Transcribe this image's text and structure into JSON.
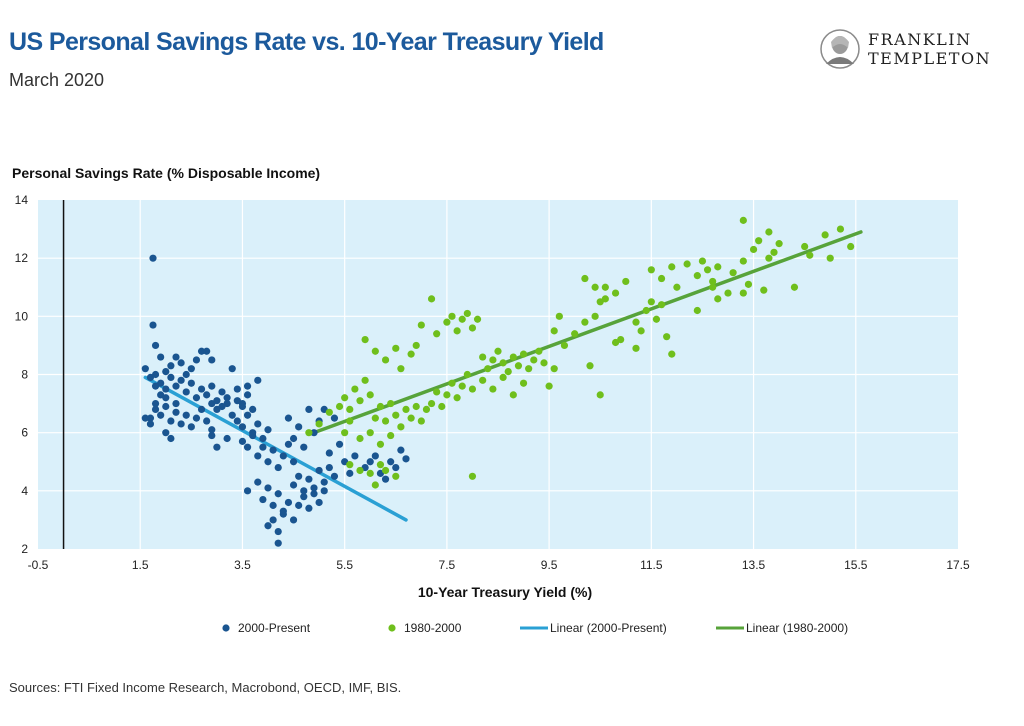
{
  "header": {
    "title": "US Personal Savings Rate vs. 10-Year Treasury Yield",
    "subtitle": "March 2020",
    "logo_line1": "FRANKLIN",
    "logo_line2": "TEMPLETON"
  },
  "footer": {
    "source": "Sources: FTI Fixed Income Research, Macrobond, OECD, IMF, BIS."
  },
  "colors": {
    "series_2000": "#1a5590",
    "series_1980": "#6fbf1c",
    "trend_2000": "#2aa0d4",
    "trend_1980": "#57a33a",
    "plot_bg": "#daf0fa",
    "grid": "#ffffff"
  },
  "chart_data": {
    "type": "scatter",
    "xlabel": "10-Year Treasury Yield (%)",
    "ylabel": "Personal Savings Rate (% Disposable Income)",
    "xlim": [
      -0.5,
      17.5
    ],
    "ylim": [
      2,
      14
    ],
    "xticks": [
      "-0.5",
      "1.5",
      "3.5",
      "5.5",
      "7.5",
      "9.5",
      "11.5",
      "13.5",
      "15.5",
      "17.5"
    ],
    "yticks": [
      "2",
      "4",
      "6",
      "8",
      "10",
      "12",
      "14"
    ],
    "grid": true,
    "legend_position": "bottom",
    "series": [
      {
        "name": "2000-Present",
        "kind": "points",
        "points": [
          [
            1.6,
            8.2
          ],
          [
            1.7,
            7.9
          ],
          [
            1.8,
            8.0
          ],
          [
            1.9,
            7.7
          ],
          [
            2.0,
            8.1
          ],
          [
            1.8,
            7.6
          ],
          [
            1.9,
            7.3
          ],
          [
            2.0,
            7.5
          ],
          [
            2.1,
            7.9
          ],
          [
            2.2,
            7.6
          ],
          [
            2.3,
            7.8
          ],
          [
            2.4,
            7.4
          ],
          [
            2.5,
            7.7
          ],
          [
            2.6,
            7.2
          ],
          [
            2.7,
            7.5
          ],
          [
            2.8,
            7.3
          ],
          [
            2.9,
            7.6
          ],
          [
            3.0,
            7.1
          ],
          [
            3.1,
            7.4
          ],
          [
            3.2,
            7.0
          ],
          [
            1.7,
            6.5
          ],
          [
            1.8,
            6.8
          ],
          [
            1.9,
            6.6
          ],
          [
            2.0,
            6.9
          ],
          [
            2.1,
            6.4
          ],
          [
            2.2,
            6.7
          ],
          [
            2.3,
            6.3
          ],
          [
            2.4,
            6.6
          ],
          [
            2.5,
            6.2
          ],
          [
            2.6,
            6.5
          ],
          [
            2.7,
            6.8
          ],
          [
            2.8,
            6.4
          ],
          [
            2.9,
            6.1
          ],
          [
            1.6,
            6.5
          ],
          [
            1.7,
            6.3
          ],
          [
            1.8,
            7.0
          ],
          [
            2.0,
            6.0
          ],
          [
            2.1,
            5.8
          ],
          [
            1.75,
            9.7
          ],
          [
            1.8,
            9.0
          ],
          [
            1.9,
            8.6
          ],
          [
            2.1,
            8.3
          ],
          [
            2.2,
            8.6
          ],
          [
            2.3,
            8.4
          ],
          [
            2.5,
            8.2
          ],
          [
            2.6,
            8.5
          ],
          [
            2.7,
            8.8
          ],
          [
            2.8,
            8.8
          ],
          [
            2.9,
            8.5
          ],
          [
            3.3,
            8.2
          ],
          [
            2.4,
            8.0
          ],
          [
            1.75,
            12.0
          ],
          [
            3.4,
            7.1
          ],
          [
            3.5,
            7.0
          ],
          [
            3.6,
            7.3
          ],
          [
            3.7,
            6.8
          ],
          [
            3.8,
            7.8
          ],
          [
            3.4,
            6.4
          ],
          [
            3.5,
            6.2
          ],
          [
            3.6,
            6.6
          ],
          [
            3.7,
            6.0
          ],
          [
            3.8,
            6.3
          ],
          [
            3.9,
            5.8
          ],
          [
            4.0,
            6.1
          ],
          [
            3.5,
            5.7
          ],
          [
            3.6,
            5.5
          ],
          [
            3.7,
            5.9
          ],
          [
            3.8,
            5.2
          ],
          [
            3.9,
            5.5
          ],
          [
            4.0,
            5.0
          ],
          [
            4.1,
            5.4
          ],
          [
            4.2,
            4.8
          ],
          [
            4.3,
            5.2
          ],
          [
            4.4,
            5.6
          ],
          [
            4.5,
            5.0
          ],
          [
            3.6,
            4.0
          ],
          [
            3.8,
            4.3
          ],
          [
            3.9,
            3.7
          ],
          [
            4.0,
            4.1
          ],
          [
            4.1,
            3.5
          ],
          [
            4.2,
            3.9
          ],
          [
            4.3,
            3.2
          ],
          [
            4.4,
            3.6
          ],
          [
            4.5,
            3.0
          ],
          [
            4.6,
            3.5
          ],
          [
            4.7,
            3.8
          ],
          [
            4.8,
            3.4
          ],
          [
            4.9,
            3.9
          ],
          [
            5.0,
            3.6
          ],
          [
            5.1,
            4.0
          ],
          [
            4.0,
            2.8
          ],
          [
            4.1,
            3.0
          ],
          [
            4.2,
            2.6
          ],
          [
            4.3,
            3.3
          ],
          [
            4.2,
            2.2
          ],
          [
            4.5,
            4.2
          ],
          [
            4.6,
            4.5
          ],
          [
            4.7,
            4.0
          ],
          [
            4.8,
            4.4
          ],
          [
            4.9,
            4.1
          ],
          [
            5.0,
            4.7
          ],
          [
            5.1,
            4.3
          ],
          [
            5.2,
            4.8
          ],
          [
            5.3,
            4.5
          ],
          [
            4.4,
            6.5
          ],
          [
            4.6,
            6.2
          ],
          [
            4.8,
            6.8
          ],
          [
            5.0,
            6.4
          ],
          [
            5.1,
            6.8
          ],
          [
            5.3,
            6.5
          ],
          [
            4.5,
            5.8
          ],
          [
            4.7,
            5.5
          ],
          [
            4.9,
            6.0
          ],
          [
            5.2,
            5.3
          ],
          [
            5.4,
            5.6
          ],
          [
            5.5,
            5.0
          ],
          [
            5.6,
            4.6
          ],
          [
            5.7,
            5.2
          ],
          [
            5.9,
            4.8
          ],
          [
            6.0,
            5.0
          ],
          [
            6.1,
            5.2
          ],
          [
            6.2,
            4.6
          ],
          [
            6.3,
            4.4
          ],
          [
            6.4,
            5.0
          ],
          [
            6.5,
            4.8
          ],
          [
            6.6,
            5.4
          ],
          [
            6.7,
            5.1
          ],
          [
            3.0,
            6.8
          ],
          [
            3.2,
            7.2
          ],
          [
            3.3,
            6.6
          ],
          [
            3.1,
            6.9
          ],
          [
            2.9,
            7.0
          ],
          [
            3.0,
            5.5
          ],
          [
            3.2,
            5.8
          ],
          [
            2.9,
            5.9
          ],
          [
            3.4,
            7.5
          ],
          [
            3.5,
            6.9
          ],
          [
            3.6,
            7.6
          ],
          [
            2.0,
            7.2
          ],
          [
            2.2,
            7.0
          ]
        ]
      },
      {
        "name": "1980-2000",
        "kind": "points",
        "points": [
          [
            4.8,
            6.0
          ],
          [
            5.0,
            6.3
          ],
          [
            5.2,
            6.7
          ],
          [
            5.4,
            6.9
          ],
          [
            5.5,
            7.2
          ],
          [
            5.6,
            6.8
          ],
          [
            5.7,
            7.5
          ],
          [
            5.8,
            7.1
          ],
          [
            5.9,
            7.8
          ],
          [
            6.0,
            7.3
          ],
          [
            6.1,
            6.5
          ],
          [
            6.2,
            6.9
          ],
          [
            6.3,
            6.4
          ],
          [
            6.4,
            7.0
          ],
          [
            6.5,
            6.6
          ],
          [
            6.6,
            6.2
          ],
          [
            6.7,
            6.8
          ],
          [
            6.8,
            6.5
          ],
          [
            6.9,
            6.9
          ],
          [
            7.0,
            6.4
          ],
          [
            7.1,
            6.8
          ],
          [
            7.2,
            7.0
          ],
          [
            7.3,
            7.4
          ],
          [
            7.4,
            6.9
          ],
          [
            7.5,
            7.3
          ],
          [
            7.6,
            7.7
          ],
          [
            7.7,
            7.2
          ],
          [
            7.8,
            7.6
          ],
          [
            7.9,
            8.0
          ],
          [
            8.0,
            7.5
          ],
          [
            5.5,
            6.0
          ],
          [
            5.6,
            6.4
          ],
          [
            5.8,
            5.8
          ],
          [
            6.0,
            6.0
          ],
          [
            6.2,
            5.6
          ],
          [
            6.4,
            5.9
          ],
          [
            5.6,
            4.9
          ],
          [
            5.8,
            4.7
          ],
          [
            6.0,
            4.6
          ],
          [
            6.1,
            4.2
          ],
          [
            6.2,
            4.9
          ],
          [
            6.3,
            4.7
          ],
          [
            6.5,
            4.5
          ],
          [
            5.9,
            9.2
          ],
          [
            6.1,
            8.8
          ],
          [
            6.3,
            8.5
          ],
          [
            6.5,
            8.9
          ],
          [
            6.6,
            8.2
          ],
          [
            6.8,
            8.7
          ],
          [
            6.9,
            9.0
          ],
          [
            7.0,
            9.7
          ],
          [
            7.2,
            10.6
          ],
          [
            7.3,
            9.4
          ],
          [
            7.5,
            9.8
          ],
          [
            7.6,
            10.0
          ],
          [
            7.7,
            9.5
          ],
          [
            7.8,
            9.9
          ],
          [
            7.9,
            10.1
          ],
          [
            8.0,
            9.6
          ],
          [
            8.1,
            9.9
          ],
          [
            8.2,
            8.6
          ],
          [
            8.3,
            8.2
          ],
          [
            8.4,
            8.5
          ],
          [
            8.5,
            8.8
          ],
          [
            8.6,
            8.4
          ],
          [
            8.7,
            8.1
          ],
          [
            8.8,
            8.6
          ],
          [
            8.9,
            8.3
          ],
          [
            9.0,
            8.7
          ],
          [
            9.1,
            8.2
          ],
          [
            9.2,
            8.5
          ],
          [
            9.3,
            8.8
          ],
          [
            9.4,
            8.4
          ],
          [
            8.2,
            7.8
          ],
          [
            8.4,
            7.5
          ],
          [
            8.6,
            7.9
          ],
          [
            8.8,
            7.3
          ],
          [
            9.0,
            7.7
          ],
          [
            9.5,
            7.6
          ],
          [
            9.6,
            8.2
          ],
          [
            8.0,
            4.5
          ],
          [
            9.6,
            9.5
          ],
          [
            9.8,
            9.0
          ],
          [
            10.0,
            9.4
          ],
          [
            10.2,
            9.8
          ],
          [
            10.4,
            10.0
          ],
          [
            10.5,
            10.5
          ],
          [
            10.6,
            11.0
          ],
          [
            10.8,
            10.8
          ],
          [
            11.0,
            11.2
          ],
          [
            10.2,
            11.3
          ],
          [
            10.4,
            11.0
          ],
          [
            10.6,
            10.6
          ],
          [
            10.3,
            8.3
          ],
          [
            10.5,
            7.3
          ],
          [
            10.9,
            9.2
          ],
          [
            11.2,
            9.8
          ],
          [
            11.4,
            10.2
          ],
          [
            11.5,
            10.5
          ],
          [
            11.6,
            9.9
          ],
          [
            11.7,
            10.4
          ],
          [
            11.8,
            9.3
          ],
          [
            11.9,
            8.7
          ],
          [
            11.5,
            11.6
          ],
          [
            11.7,
            11.3
          ],
          [
            11.9,
            11.7
          ],
          [
            12.0,
            11.0
          ],
          [
            12.2,
            11.8
          ],
          [
            12.4,
            11.4
          ],
          [
            12.5,
            11.9
          ],
          [
            12.6,
            11.6
          ],
          [
            12.7,
            11.2
          ],
          [
            12.4,
            10.2
          ],
          [
            12.8,
            10.6
          ],
          [
            13.0,
            10.8
          ],
          [
            13.1,
            11.5
          ],
          [
            13.3,
            11.9
          ],
          [
            13.5,
            12.3
          ],
          [
            13.6,
            12.6
          ],
          [
            13.4,
            11.1
          ],
          [
            13.3,
            10.8
          ],
          [
            13.7,
            10.9
          ],
          [
            13.8,
            12.0
          ],
          [
            14.0,
            12.5
          ],
          [
            14.3,
            11.0
          ],
          [
            14.5,
            12.4
          ],
          [
            14.6,
            12.1
          ],
          [
            14.9,
            12.8
          ],
          [
            15.0,
            12.0
          ],
          [
            15.2,
            13.0
          ],
          [
            15.4,
            12.4
          ],
          [
            13.3,
            13.3
          ],
          [
            13.8,
            12.9
          ],
          [
            13.9,
            12.2
          ],
          [
            12.7,
            11.0
          ],
          [
            12.8,
            11.7
          ],
          [
            11.3,
            9.5
          ],
          [
            11.2,
            8.9
          ],
          [
            9.7,
            10.0
          ],
          [
            10.8,
            9.1
          ]
        ]
      },
      {
        "name": "Linear (2000-Present)",
        "kind": "line",
        "x": [
          1.6,
          6.7
        ],
        "y": [
          7.9,
          3.0
        ]
      },
      {
        "name": "Linear (1980-2000)",
        "kind": "line",
        "x": [
          4.9,
          15.6
        ],
        "y": [
          6.0,
          12.9
        ]
      }
    ]
  }
}
